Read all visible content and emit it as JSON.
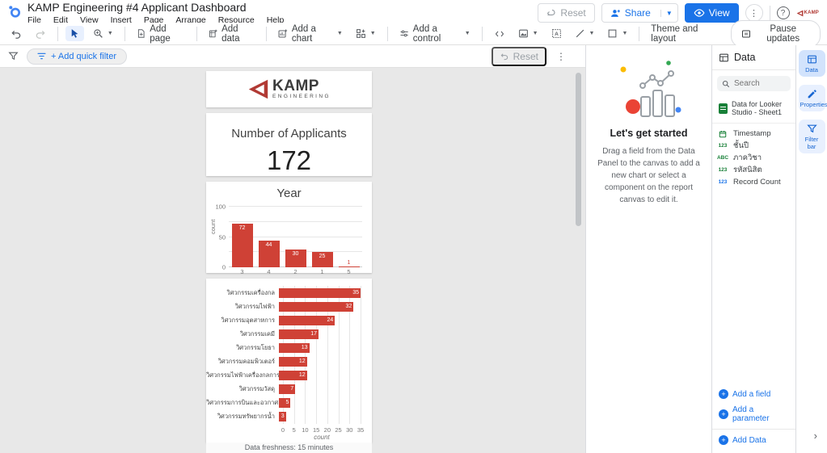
{
  "colors": {
    "accent": "#1a73e8",
    "bar_red": "#cf4136",
    "canvas_bg": "#e8e8e8",
    "field_green": "#188038"
  },
  "header": {
    "title": "KAMP Engineering #4 Applicant Dashboard",
    "menus": [
      "File",
      "Edit",
      "View",
      "Insert",
      "Page",
      "Arrange",
      "Resource",
      "Help"
    ],
    "reset_label": "Reset",
    "share_label": "Share",
    "view_label": "View"
  },
  "toolbar": {
    "add_page": "Add page",
    "add_data": "Add data",
    "add_chart": "Add a chart",
    "add_control": "Add a control",
    "theme_layout": "Theme and layout",
    "pause_updates": "Pause updates"
  },
  "filter_bar": {
    "add_quick_filter": "+ Add quick filter",
    "reset_label": "Reset"
  },
  "canvas": {
    "logo_text": "KAMP",
    "logo_subtext": "ENGINEERING",
    "scorecard": {
      "title": "Number of Applicants",
      "value": "172"
    },
    "freshness": "Data freshness: 15 minutes"
  },
  "chart_data": [
    {
      "type": "bar",
      "title": "Year",
      "categories": [
        "3",
        "4",
        "2",
        "1",
        "5"
      ],
      "values": [
        72,
        44,
        30,
        25,
        1
      ],
      "xlabel": "",
      "ylabel": "count",
      "ylim": [
        0,
        100
      ],
      "yticks": [
        0,
        50,
        100
      ],
      "gridlines": [
        0,
        25,
        50,
        75,
        100
      ],
      "bar_color": "#cf4136",
      "legend": "none"
    },
    {
      "type": "bar",
      "orientation": "horizontal",
      "title": "",
      "categories": [
        "วิศวกรรมเครื่องกล",
        "วิศวกรรมไฟฟ้า",
        "วิศวกรรมอุตสาหการ",
        "วิศวกรรมเคมี",
        "วิศวกรรมโยธา",
        "วิศวกรรมคอมพิวเตอร์",
        "วิศวกรรมไฟฟ้าเครื่องกลการผลิต",
        "วิศวกรรมวัสดุ",
        "วิศวกรรมการบินและอวกาศ",
        "วิศวกรรมทรัพยากรน้ำ"
      ],
      "values": [
        35,
        32,
        24,
        17,
        13,
        12,
        12,
        7,
        5,
        3
      ],
      "xlabel": "count",
      "xlim": [
        0,
        35
      ],
      "xticks": [
        0,
        5,
        10,
        15,
        20,
        25,
        30,
        35
      ],
      "bar_color": "#cf4136",
      "legend": "none"
    }
  ],
  "get_started": {
    "title": "Let's get started",
    "body": "Drag a field from the Data Panel to the canvas to add a new chart or select a component on the report canvas to edit it."
  },
  "data_panel": {
    "title": "Data",
    "search_placeholder": "Search",
    "source": "Data for Looker Studio - Sheet1",
    "fields": [
      {
        "name": "Timestamp",
        "type": "date"
      },
      {
        "name": "ชั้นปี",
        "type": "number"
      },
      {
        "name": "ภาควิชา",
        "type": "text"
      },
      {
        "name": "รหัสนิสิต",
        "type": "number"
      },
      {
        "name": "Record Count",
        "type": "metric"
      }
    ],
    "add_field": "Add a field",
    "add_parameter": "Add a parameter",
    "add_data": "Add Data"
  },
  "tab_rail": {
    "tabs": [
      {
        "label": "Data",
        "selected": true
      },
      {
        "label": "Properties",
        "selected": false
      },
      {
        "label": "Filter bar",
        "selected": false
      }
    ]
  }
}
